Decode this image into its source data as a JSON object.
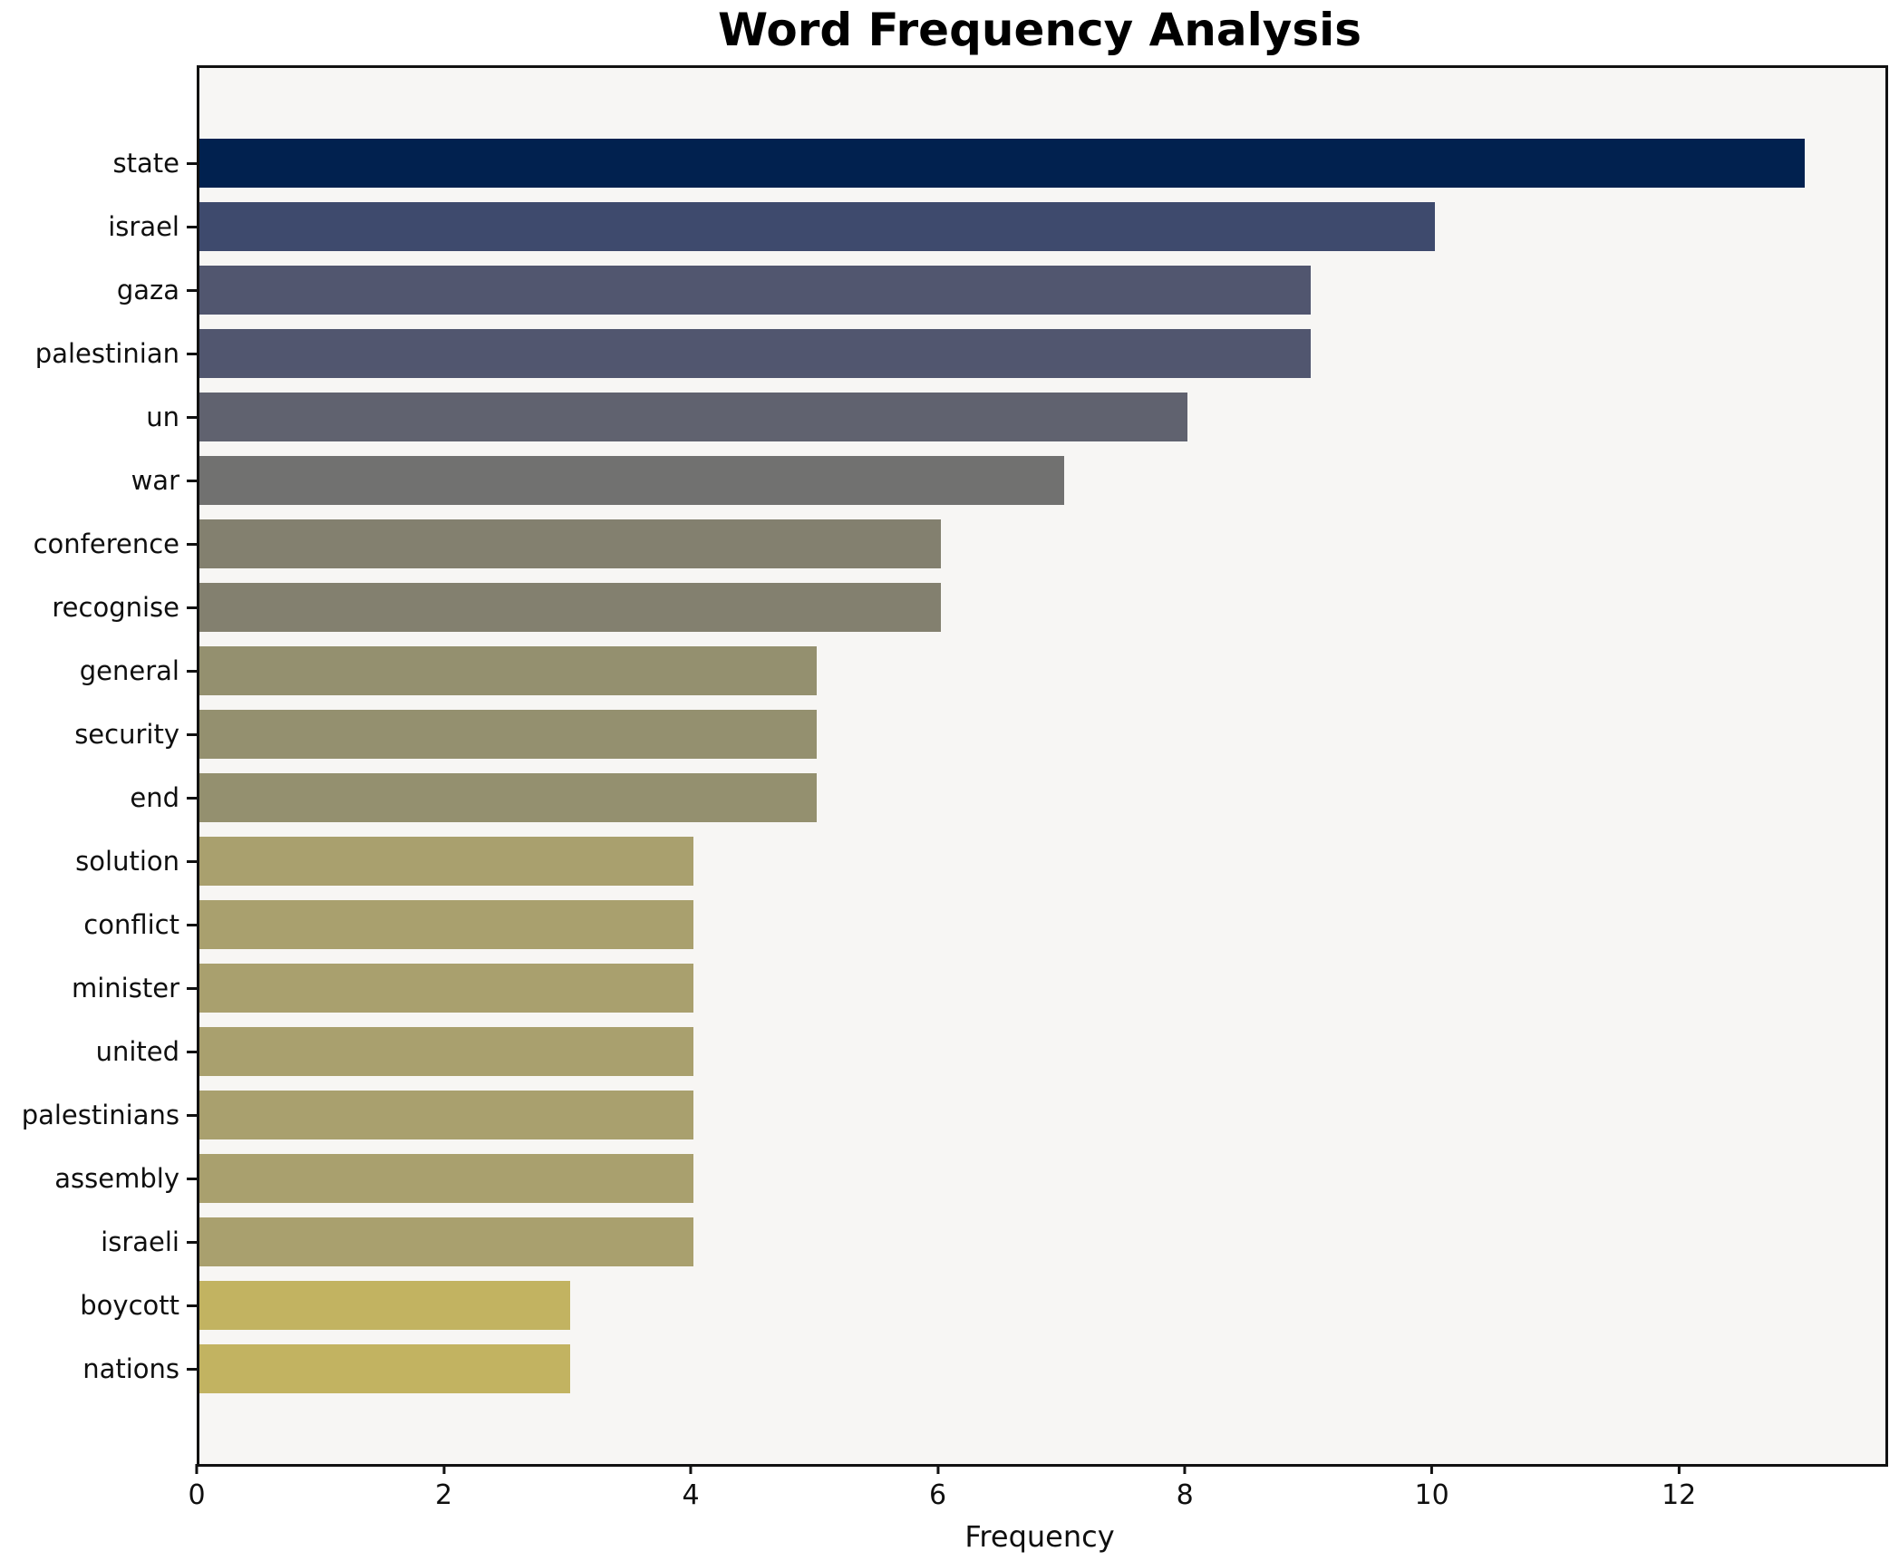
{
  "chart_data": {
    "type": "bar",
    "orientation": "horizontal",
    "title": "Word Frequency Analysis",
    "xlabel": "Frequency",
    "ylabel": "",
    "categories": [
      "state",
      "israel",
      "gaza",
      "palestinian",
      "un",
      "war",
      "conference",
      "recognise",
      "general",
      "security",
      "end",
      "solution",
      "conflict",
      "minister",
      "united",
      "palestinians",
      "assembly",
      "israeli",
      "boycott",
      "nations"
    ],
    "values": [
      13,
      10,
      9,
      9,
      8,
      7,
      6,
      6,
      5,
      5,
      5,
      4,
      4,
      4,
      4,
      4,
      4,
      4,
      3,
      3
    ],
    "bar_colors": [
      "#01214f",
      "#3e4a6d",
      "#51566f",
      "#51566f",
      "#60626f",
      "#717170",
      "#83806f",
      "#83806f",
      "#94906f",
      "#94906f",
      "#94906f",
      "#a9a06e",
      "#a9a06e",
      "#a9a06e",
      "#a9a06e",
      "#a9a06e",
      "#a9a06e",
      "#a9a06e",
      "#c2b361",
      "#c2b361"
    ],
    "xticks": [
      0,
      2,
      4,
      6,
      8,
      10,
      12
    ],
    "xlim": [
      0,
      13.65
    ],
    "grid": false,
    "legend": false,
    "plot_background": "#f7f6f4",
    "figure_background": "#ffffff",
    "axis_color": "#111111"
  }
}
